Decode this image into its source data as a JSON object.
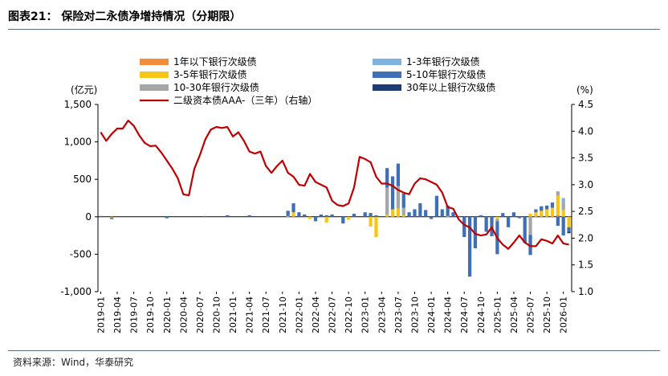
{
  "header": {
    "title": "图表21：  保险对二永债净增持情况（分期限）"
  },
  "footer": {
    "source": "资料来源：Wind，华泰研究"
  },
  "colors": {
    "s1": "#F28E3B",
    "s2": "#F5C518",
    "s3": "#A6A6A6",
    "s4": "#7FB2E0",
    "s5": "#3F6FB5",
    "s6": "#1F3B73",
    "line": "#C00000"
  },
  "chart_data": {
    "type": "bar+line",
    "stacked": true,
    "left_axis": {
      "label": "(亿元)",
      "min": -1000,
      "max": 1500,
      "ticks": [
        -1000,
        -500,
        0,
        500,
        1000,
        1500
      ],
      "tick_labels": [
        "-1,000",
        "-500",
        "0",
        "500",
        "1,000",
        "1,500"
      ]
    },
    "right_axis": {
      "label": "(%)",
      "min": 1.0,
      "max": 4.5,
      "ticks": [
        1.0,
        1.5,
        2.0,
        2.5,
        3.0,
        3.5,
        4.0,
        4.5
      ],
      "tick_labels": [
        "1.0",
        "1.5",
        "2.0",
        "2.5",
        "3.0",
        "3.5",
        "4.0",
        "4.5"
      ]
    },
    "x_start": "2019-01",
    "n_months": 86,
    "x_labels": [
      "2019-01",
      "2019-04",
      "2019-07",
      "2019-10",
      "2020-01",
      "2020-04",
      "2020-07",
      "2020-10",
      "2021-01",
      "2021-04",
      "2021-07",
      "2021-10",
      "2022-01",
      "2022-04",
      "2022-07",
      "2022-10",
      "2023-01",
      "2023-04",
      "2023-07",
      "2023-10",
      "2024-01",
      "2024-04",
      "2024-07",
      "2024-10",
      "2025-01",
      "2025-04",
      "2025-07",
      "2025-10",
      "2026-01"
    ],
    "x_label_step": 3,
    "legend": [
      {
        "key": "s1",
        "label": "1年以下银行次级债"
      },
      {
        "key": "s4",
        "label": "1-3年银行次级债"
      },
      {
        "key": "s2",
        "label": "3-5年银行次级债"
      },
      {
        "key": "s5",
        "label": "5-10年银行次级债"
      },
      {
        "key": "s3",
        "label": "10-30年银行次级债"
      },
      {
        "key": "s6",
        "label": "30年以上银行次级债"
      },
      {
        "key": "line",
        "label": "二级资本债AAA-（三年）（右轴）"
      }
    ],
    "bar_series": [
      {
        "key": "s1",
        "name": "1年以下银行次级债",
        "values": [
          0,
          0,
          0,
          0,
          0,
          0,
          0,
          0,
          0,
          0,
          0,
          0,
          0,
          0,
          0,
          0,
          0,
          0,
          0,
          0,
          0,
          0,
          0,
          0,
          0,
          0,
          0,
          0,
          0,
          0,
          0,
          0,
          0,
          0,
          0,
          0,
          0,
          0,
          0,
          0,
          0,
          0,
          0,
          0,
          0,
          0,
          0,
          0,
          0,
          0,
          0,
          0,
          0,
          0,
          0,
          0,
          0,
          0,
          0,
          0,
          0,
          0,
          0,
          0,
          0,
          0,
          0,
          0,
          0,
          0,
          0,
          0,
          0,
          0,
          0,
          0,
          0,
          0,
          0,
          0,
          0,
          0,
          0,
          20,
          0,
          0
        ]
      },
      {
        "key": "s2",
        "name": "3-5年银行次级债",
        "values": [
          0,
          0,
          -10,
          0,
          0,
          0,
          0,
          0,
          0,
          0,
          0,
          0,
          0,
          0,
          0,
          0,
          0,
          0,
          0,
          0,
          0,
          0,
          0,
          0,
          0,
          0,
          0,
          0,
          0,
          0,
          0,
          0,
          0,
          0,
          10,
          60,
          0,
          0,
          -30,
          0,
          0,
          -80,
          0,
          0,
          0,
          -40,
          0,
          0,
          0,
          -130,
          -270,
          0,
          30,
          100,
          110,
          20,
          0,
          0,
          0,
          0,
          0,
          0,
          0,
          10,
          0,
          0,
          0,
          0,
          0,
          0,
          0,
          0,
          -30,
          0,
          0,
          0,
          0,
          0,
          40,
          60,
          80,
          100,
          120,
          260,
          90,
          -140
        ]
      },
      {
        "key": "s3",
        "name": "10-30年银行次级债",
        "values": [
          0,
          0,
          0,
          0,
          0,
          0,
          0,
          0,
          0,
          0,
          0,
          0,
          0,
          0,
          0,
          0,
          0,
          0,
          0,
          0,
          0,
          0,
          0,
          0,
          0,
          0,
          0,
          0,
          0,
          0,
          0,
          0,
          0,
          0,
          0,
          0,
          0,
          0,
          0,
          0,
          0,
          0,
          0,
          0,
          0,
          0,
          0,
          0,
          0,
          0,
          0,
          0,
          360,
          0,
          300,
          100,
          0,
          0,
          0,
          0,
          0,
          0,
          0,
          0,
          0,
          0,
          0,
          0,
          0,
          0,
          0,
          0,
          -30,
          0,
          0,
          0,
          0,
          0,
          -240,
          0,
          0,
          0,
          0,
          60,
          100,
          0
        ]
      },
      {
        "key": "s4",
        "name": "1-3年银行次级债",
        "values": [
          0,
          0,
          0,
          0,
          0,
          0,
          0,
          0,
          0,
          0,
          0,
          0,
          0,
          0,
          0,
          0,
          0,
          0,
          0,
          0,
          0,
          0,
          0,
          0,
          0,
          0,
          0,
          0,
          0,
          0,
          0,
          0,
          0,
          0,
          0,
          0,
          0,
          0,
          0,
          0,
          0,
          0,
          0,
          0,
          0,
          0,
          0,
          0,
          0,
          0,
          0,
          0,
          0,
          0,
          0,
          0,
          0,
          0,
          0,
          0,
          0,
          0,
          0,
          0,
          0,
          0,
          0,
          0,
          0,
          0,
          0,
          0,
          0,
          0,
          0,
          0,
          0,
          0,
          0,
          0,
          0,
          0,
          0,
          0,
          60,
          0
        ]
      },
      {
        "key": "s5",
        "name": "5-10年银行次级债",
        "values": [
          10,
          0,
          -20,
          0,
          0,
          0,
          0,
          0,
          0,
          0,
          0,
          0,
          -20,
          0,
          0,
          0,
          0,
          0,
          0,
          10,
          0,
          0,
          0,
          20,
          0,
          0,
          0,
          20,
          0,
          0,
          0,
          0,
          0,
          0,
          70,
          120,
          60,
          30,
          0,
          -60,
          30,
          20,
          30,
          0,
          -90,
          0,
          40,
          0,
          60,
          50,
          20,
          0,
          260,
          440,
          300,
          190,
          60,
          100,
          180,
          90,
          -30,
          280,
          100,
          140,
          60,
          10,
          -270,
          -800,
          -420,
          20,
          -200,
          -260,
          -440,
          50,
          -140,
          60,
          -20,
          -350,
          -270,
          40,
          60,
          50,
          70,
          -120,
          -250,
          -60
        ]
      },
      {
        "key": "s6",
        "name": "30年以上银行次级债",
        "values": [
          0,
          0,
          0,
          0,
          0,
          0,
          0,
          0,
          0,
          0,
          0,
          0,
          0,
          0,
          0,
          0,
          0,
          0,
          0,
          0,
          0,
          0,
          0,
          0,
          0,
          0,
          0,
          0,
          0,
          0,
          0,
          0,
          0,
          0,
          0,
          0,
          0,
          0,
          0,
          0,
          0,
          0,
          0,
          0,
          0,
          0,
          0,
          0,
          0,
          0,
          0,
          0,
          0,
          0,
          0,
          0,
          0,
          0,
          0,
          0,
          0,
          0,
          0,
          0,
          0,
          0,
          0,
          0,
          0,
          0,
          0,
          0,
          0,
          0,
          0,
          0,
          0,
          0,
          0,
          0,
          0,
          0,
          0,
          0,
          0,
          -20
        ]
      }
    ],
    "line_series": {
      "key": "line",
      "name": "二级资本债AAA-（三年）（右轴）",
      "values": [
        3.98,
        3.82,
        3.95,
        4.05,
        4.05,
        4.2,
        4.1,
        3.92,
        3.78,
        3.72,
        3.73,
        3.6,
        3.45,
        3.3,
        3.12,
        2.82,
        2.8,
        3.3,
        3.55,
        3.85,
        4.03,
        4.08,
        4.06,
        4.08,
        3.9,
        3.98,
        3.82,
        3.62,
        3.58,
        3.62,
        3.35,
        3.22,
        3.35,
        3.45,
        3.22,
        3.15,
        3.0,
        2.98,
        3.2,
        3.05,
        3.0,
        2.95,
        2.7,
        2.62,
        2.6,
        2.65,
        2.95,
        3.52,
        3.48,
        3.42,
        3.15,
        3.02,
        3.02,
        2.98,
        2.9,
        2.85,
        2.82,
        3.02,
        3.12,
        3.1,
        3.05,
        3.0,
        2.85,
        2.58,
        2.55,
        2.35,
        2.25,
        2.2,
        2.08,
        2.05,
        2.07,
        2.2,
        2.0,
        1.88,
        1.8,
        1.92,
        2.05,
        1.92,
        1.85,
        1.85,
        1.98,
        1.95,
        1.9,
        2.05,
        1.9,
        1.88
      ]
    }
  }
}
